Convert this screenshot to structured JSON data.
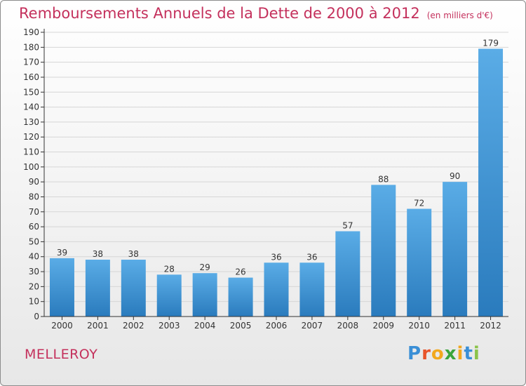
{
  "header": {
    "title": "Remboursements Annuels de la Dette de 2000 à 2012",
    "unit_note": "(en milliers d'€)"
  },
  "footer": {
    "town": "MELLEROY",
    "logo": {
      "letters": [
        "P",
        "r",
        "o",
        "x",
        "i",
        "t",
        "i"
      ],
      "colors": [
        "#3a8fd6",
        "#e8542a",
        "#f2a81d",
        "#3aa53b",
        "#f2a81d",
        "#3a8fd6",
        "#8bc34a"
      ]
    }
  },
  "colors": {
    "accent": "#c4305c",
    "bar_light": "#5aace6",
    "bar_dark": "#2a7bbd",
    "grid": "#d6d6d6",
    "axis": "#333333"
  },
  "chart_data": {
    "type": "bar",
    "categories": [
      "2000",
      "2001",
      "2002",
      "2003",
      "2004",
      "2005",
      "2006",
      "2007",
      "2008",
      "2009",
      "2010",
      "2011",
      "2012"
    ],
    "values": [
      39,
      38,
      38,
      28,
      29,
      26,
      36,
      36,
      57,
      88,
      72,
      90,
      179
    ],
    "data_labels": [
      "39",
      "38",
      "38",
      "28",
      "29",
      "26",
      "36",
      "36",
      "57",
      "88",
      "72",
      "90",
      "179"
    ],
    "ylim": [
      0,
      190
    ],
    "ytick_step": 10,
    "yticks": [
      "0",
      "10",
      "20",
      "30",
      "40",
      "50",
      "60",
      "70",
      "80",
      "90",
      "100",
      "110",
      "120",
      "130",
      "140",
      "150",
      "160",
      "170",
      "180",
      "190"
    ],
    "grid": true,
    "xlabel": "",
    "ylabel": ""
  }
}
